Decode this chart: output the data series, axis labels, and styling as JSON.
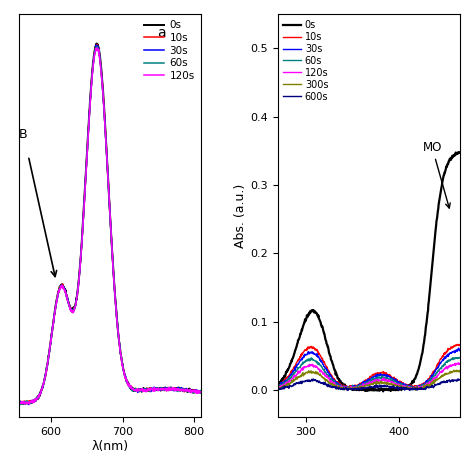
{
  "panel_a": {
    "label": "a",
    "arrow_label": "B",
    "xlabel": "λ(nm)",
    "legend": [
      "0s",
      "10s",
      "30s",
      "60s",
      "120s"
    ],
    "colors": [
      "black",
      "red",
      "blue",
      "teal",
      "magenta"
    ],
    "xlim": [
      555,
      810
    ],
    "ylim": [
      -0.04,
      1.1
    ],
    "xticks": [
      600,
      700,
      800
    ]
  },
  "panel_b": {
    "ylabel": "Abs. (a.u.)",
    "legend": [
      "0s",
      "10s",
      "30s",
      "60s",
      "120s",
      "300s",
      "600s"
    ],
    "colors": [
      "black",
      "red",
      "blue",
      "teal",
      "magenta",
      "olive",
      "navy"
    ],
    "annotation": "MO",
    "xlim": [
      270,
      465
    ],
    "ylim": [
      -0.04,
      0.55
    ],
    "xticks": [
      300,
      400
    ],
    "yticks": [
      0.0,
      0.1,
      0.2,
      0.3,
      0.4,
      0.5
    ]
  }
}
